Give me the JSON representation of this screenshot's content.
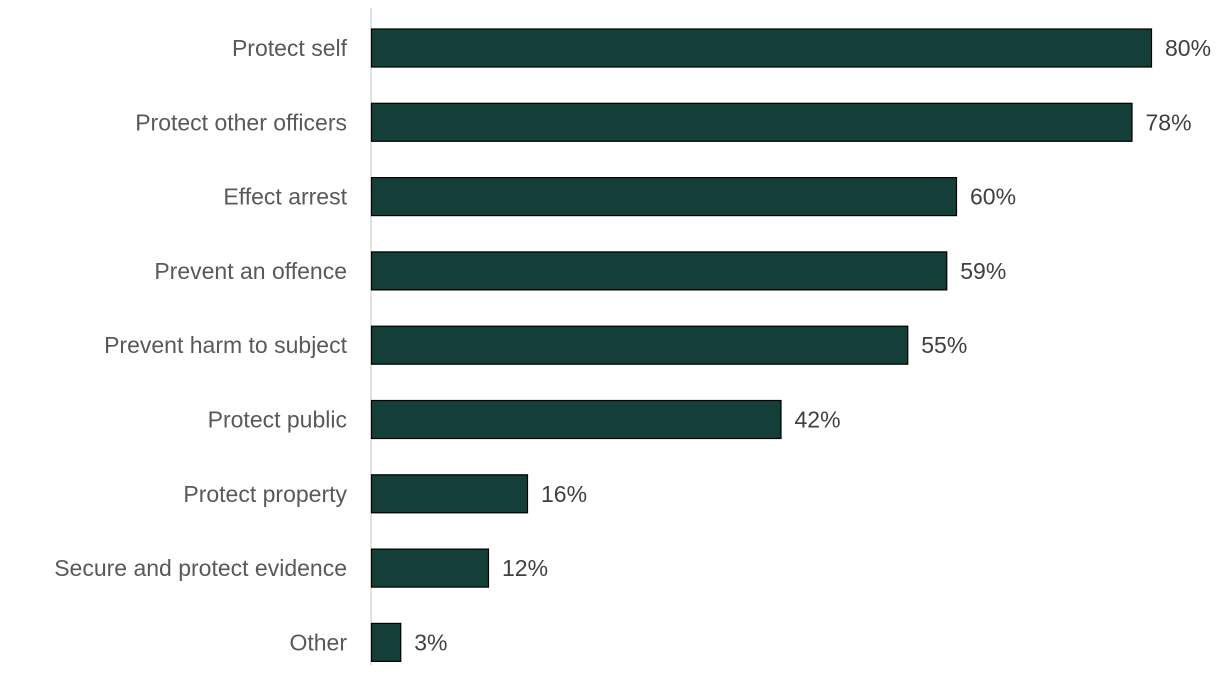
{
  "chart_data": {
    "type": "bar",
    "orientation": "horizontal",
    "categories": [
      "Protect self",
      "Protect other officers",
      "Effect arrest",
      "Prevent an offence",
      "Prevent harm to subject",
      "Protect public",
      "Protect property",
      "Secure and protect evidence",
      "Other"
    ],
    "values": [
      80,
      78,
      60,
      59,
      55,
      42,
      16,
      12,
      3
    ],
    "value_labels": [
      "80%",
      "78%",
      "60%",
      "59%",
      "55%",
      "42%",
      "16%",
      "12%",
      "3%"
    ],
    "unit": "%",
    "xlim": [
      0,
      80
    ],
    "title": "",
    "xlabel": "",
    "ylabel": "",
    "grid": false,
    "legend": "none",
    "bar_color": "#133f38",
    "bar_edge_color": "#000000"
  }
}
